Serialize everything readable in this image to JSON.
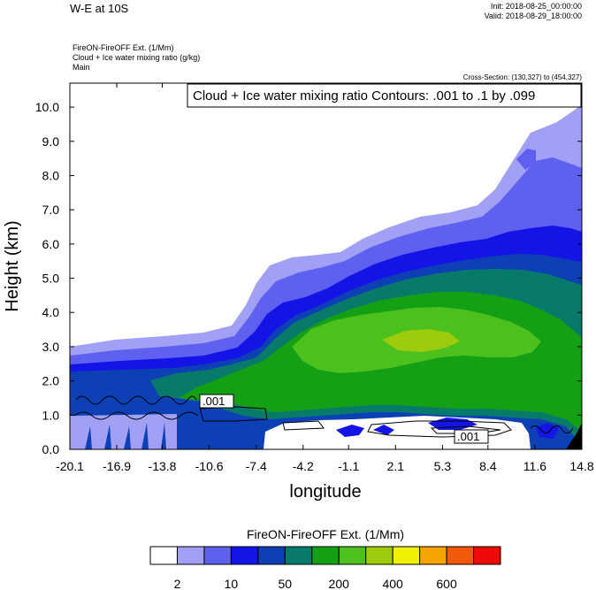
{
  "header": {
    "title": "W-E at 10S",
    "init": "Init: 2018-08-25_00:00:00",
    "valid": "Valid: 2018-08-29_18:00:00",
    "subtitle_1": "FireON-FireOFF Ext.   (1/Mm)",
    "subtitle_2": "Cloud + Ice water mixing ratio   (g/kg)",
    "subtitle_3": "Main",
    "cross_section": "Cross-Section: (130,327) to (454,327)"
  },
  "chart_data": {
    "type": "heatmap",
    "title": "W-E at 10S",
    "xlabel": "longitude",
    "ylabel": "Height (km)",
    "x_ticks": [
      "-20.1",
      "-16.9",
      "-13.8",
      "-10.6",
      "-7.4",
      "-4.2",
      "-1.1",
      "2.1",
      "5.3",
      "8.4",
      "11.6",
      "14.8"
    ],
    "y_ticks": [
      "0.0",
      "1.0",
      "2.0",
      "3.0",
      "4.0",
      "5.0",
      "6.0",
      "7.0",
      "8.0",
      "9.0",
      "10.0"
    ],
    "xlim": [
      -20.1,
      14.8
    ],
    "ylim": [
      0.0,
      10.7
    ],
    "contour_info": "Cloud + Ice water mixing ratio Contours: .001 to .1 by .099",
    "contour_labels": [
      ".001",
      ".001"
    ],
    "colorbar": {
      "title": "FireON-FireOFF Ext.  (1/Mm)",
      "labels": [
        "2",
        "10",
        "50",
        "200",
        "400",
        "600"
      ],
      "colors": [
        "#ffffff",
        "#a0a0f5",
        "#6060f0",
        "#1414e6",
        "#0c40b4",
        "#087a6a",
        "#14a014",
        "#4cc01c",
        "#9ccc0c",
        "#f0f000",
        "#f5a400",
        "#f05a0a",
        "#f00a0a"
      ]
    },
    "grid": false,
    "legend": "bottom"
  },
  "palette": {
    "c1": "#a0a0f5",
    "c2": "#6060f0",
    "c3": "#1414e6",
    "c4": "#0c40b4",
    "c5": "#087a6a",
    "c6": "#14a014",
    "c7": "#4cc01c",
    "c8": "#9ccc0c"
  }
}
